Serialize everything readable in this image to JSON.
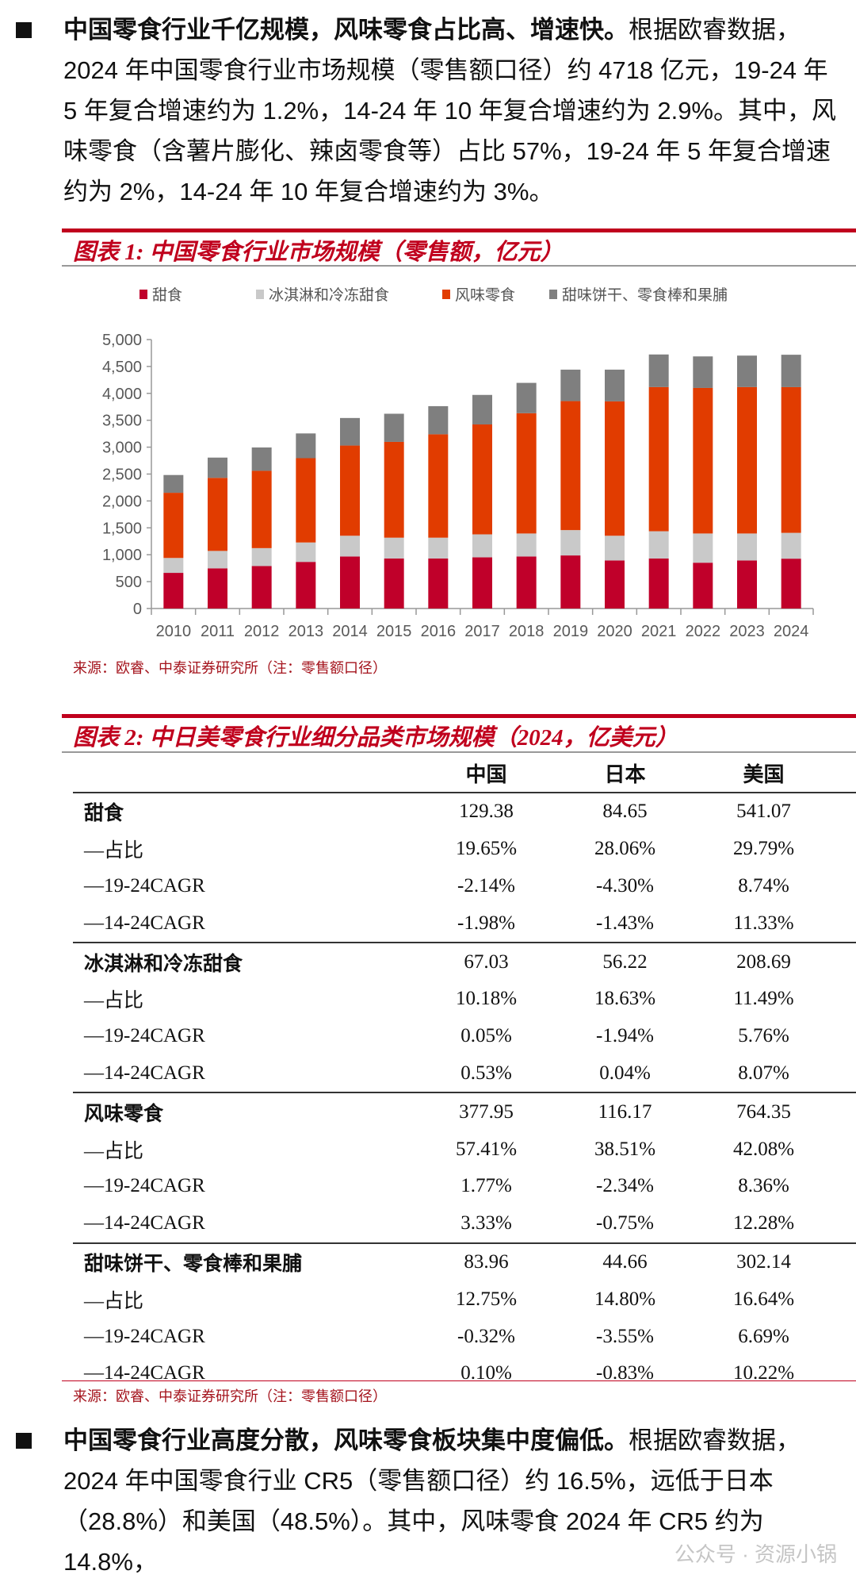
{
  "paragraph1": {
    "bold": "中国零食行业千亿规模，风味零食占比高、增速快。",
    "text": "根据欧睿数据，2024 年中国零食行业市场规模（零售额口径）约 4718 亿元，19-24 年 5 年复合增速约为 1.2%，14-24 年 10 年复合增速约为 2.9%。其中，风味零食（含薯片膨化、辣卤零食等）占比 57%，19-24 年 5 年复合增速约为 2%，14-24 年 10 年复合增速约为 3%。"
  },
  "figure1": {
    "title": "图表 1:  中国零食行业市场规模（零售额，亿元）",
    "source": "来源：欧睿、中泰证券研究所（注：零售额口径）"
  },
  "chart_data": {
    "type": "bar",
    "stacked": true,
    "title": "图表 1:  中国零食行业市场规模（零售额，亿元）",
    "xlabel": "",
    "ylabel": "",
    "ylim": [
      0,
      5000
    ],
    "yticks": [
      "0",
      "500",
      "1,000",
      "1,500",
      "2,000",
      "2,500",
      "3,000",
      "3,500",
      "4,000",
      "4,500",
      "5,000"
    ],
    "grid": false,
    "legend_position": "top",
    "categories": [
      "2010",
      "2011",
      "2012",
      "2013",
      "2014",
      "2015",
      "2016",
      "2017",
      "2018",
      "2019",
      "2020",
      "2021",
      "2022",
      "2023",
      "2024"
    ],
    "series": [
      {
        "name": "甜食",
        "color": "#c0002a",
        "values": [
          663,
          747,
          789,
          867,
          967,
          930,
          930,
          951,
          967,
          987,
          893,
          930,
          852,
          893,
          927
        ]
      },
      {
        "name": "冰淇淋和冷冻甜食",
        "color": "#c9c9c9",
        "values": [
          277,
          324,
          334,
          361,
          386,
          387,
          387,
          428,
          428,
          471,
          460,
          507,
          543,
          502,
          480
        ]
      },
      {
        "name": "风味零食",
        "color": "#e13c00",
        "values": [
          1212,
          1358,
          1437,
          1567,
          1677,
          1781,
          1922,
          2043,
          2236,
          2398,
          2498,
          2680,
          2706,
          2722,
          2709
        ]
      },
      {
        "name": "甜味饼干、零食棒和果脯",
        "color": "#7f7f7f",
        "values": [
          330,
          377,
          434,
          460,
          512,
          523,
          523,
          549,
          564,
          585,
          590,
          606,
          586,
          585,
          602
        ]
      }
    ]
  },
  "figure2": {
    "title": "图表 2:  中日美零食行业细分品类市场规模（2024，亿美元）",
    "source": "来源：欧睿、中泰证券研究所（注：零售额口径）",
    "columns": [
      "",
      "中国",
      "日本",
      "美国"
    ],
    "groups": [
      {
        "label": "甜食",
        "values": [
          "129.38",
          "84.65",
          "541.07"
        ],
        "rows": [
          {
            "label": "—占比",
            "values": [
              "19.65%",
              "28.06%",
              "29.79%"
            ]
          },
          {
            "label": "—19-24CAGR",
            "values": [
              "-2.14%",
              "-4.30%",
              "8.74%"
            ]
          },
          {
            "label": "—14-24CAGR",
            "values": [
              "-1.98%",
              "-1.43%",
              "11.33%"
            ]
          }
        ]
      },
      {
        "label": "冰淇淋和冷冻甜食",
        "values": [
          "67.03",
          "56.22",
          "208.69"
        ],
        "rows": [
          {
            "label": "—占比",
            "values": [
              "10.18%",
              "18.63%",
              "11.49%"
            ]
          },
          {
            "label": "—19-24CAGR",
            "values": [
              "0.05%",
              "-1.94%",
              "5.76%"
            ]
          },
          {
            "label": "—14-24CAGR",
            "values": [
              "0.53%",
              "0.04%",
              "8.07%"
            ]
          }
        ]
      },
      {
        "label": "风味零食",
        "values": [
          "377.95",
          "116.17",
          "764.35"
        ],
        "rows": [
          {
            "label": "—占比",
            "values": [
              "57.41%",
              "38.51%",
              "42.08%"
            ]
          },
          {
            "label": "—19-24CAGR",
            "values": [
              "1.77%",
              "-2.34%",
              "8.36%"
            ]
          },
          {
            "label": "—14-24CAGR",
            "values": [
              "3.33%",
              "-0.75%",
              "12.28%"
            ]
          }
        ]
      },
      {
        "label": "甜味饼干、零食棒和果脯",
        "values": [
          "83.96",
          "44.66",
          "302.14"
        ],
        "rows": [
          {
            "label": "—占比",
            "values": [
              "12.75%",
              "14.80%",
              "16.64%"
            ]
          },
          {
            "label": "—19-24CAGR",
            "values": [
              "-0.32%",
              "-3.55%",
              "6.69%"
            ]
          },
          {
            "label": "—14-24CAGR",
            "values": [
              "0.10%",
              "-0.83%",
              "10.22%"
            ]
          }
        ]
      }
    ]
  },
  "paragraph2": {
    "bold": "中国零食行业高度分散，风味零食板块集中度偏低。",
    "text": "根据欧睿数据，2024 年中国零食行业 CR5（零售额口径）约 16.5%，远低于日本（28.8%）和美国（48.5%）。其中，风味零食 2024 年 CR5 约为 14.8%，"
  },
  "watermark": "公众号 · 资源小锅"
}
